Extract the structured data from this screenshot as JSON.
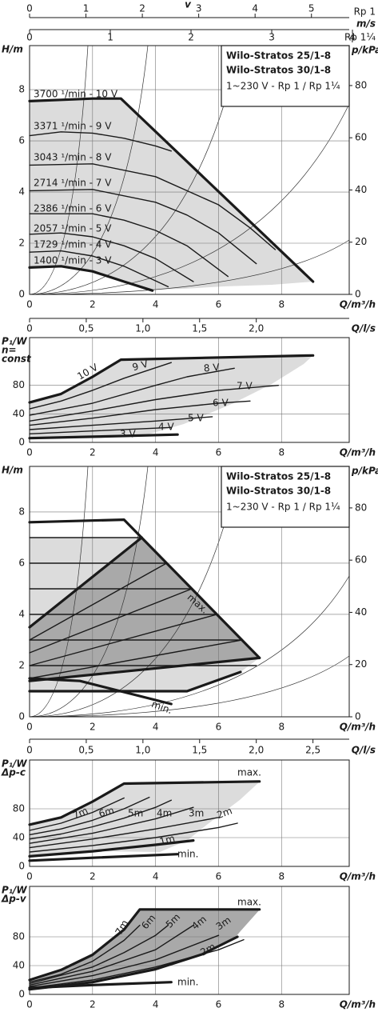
{
  "chart_data": [
    {
      "type": "axis",
      "title": "v",
      "unit": "m/s",
      "xlabel": "Rp 1",
      "xlim": [
        0,
        5.67
      ],
      "xticks": [
        0,
        1,
        2,
        3,
        4,
        5
      ]
    },
    {
      "type": "axis",
      "xlabel": "Rp 1¼",
      "xlim": [
        0,
        3.96
      ],
      "xticks": [
        0,
        1,
        2,
        3,
        4
      ]
    },
    {
      "type": "line",
      "ylabel_lines": [
        "H/m"
      ],
      "y2label": "p/kPa",
      "xlabel": "Q/m³/h",
      "annotations": [
        "Wilo-Stratos 25/1-8",
        "Wilo-Stratos 30/1-8",
        "1~230 V - Rp 1 / Rp 1¼"
      ],
      "xlim": [
        0,
        10.15
      ],
      "xticks": [
        0,
        2,
        4,
        6,
        8
      ],
      "ylim": [
        0,
        9.72
      ],
      "yticks": [
        0,
        2,
        4,
        6,
        8
      ],
      "y2lim": [
        0,
        95.3
      ],
      "y2ticks": [
        0,
        20,
        40,
        60,
        80
      ],
      "grid": true,
      "series": [
        {
          "name": "3700 ¹/min - 10 V",
          "color": "#1a1a1a",
          "weight": "bold",
          "x": [
            0,
            1,
            2,
            2.9,
            9
          ],
          "values": [
            7.55,
            7.6,
            7.65,
            7.65,
            0.5
          ]
        },
        {
          "name": "3371 ¹/min - 9 V",
          "color": "#1a1a1a",
          "weight": "normal",
          "x": [
            0,
            1,
            2,
            3,
            4,
            4.5
          ],
          "values": [
            6.2,
            6.35,
            6.3,
            6.1,
            5.8,
            5.6
          ]
        },
        {
          "name": "3043 ¹/min - 8 V",
          "color": "#1a1a1a",
          "weight": "normal",
          "x": [
            0,
            2,
            4,
            6,
            7,
            7.8
          ],
          "values": [
            5.05,
            5.1,
            4.6,
            3.5,
            2.6,
            1.75
          ]
        },
        {
          "name": "2714 ¹/min - 7 V",
          "color": "#1a1a1a",
          "weight": "normal",
          "x": [
            0,
            2,
            4,
            5,
            6,
            7.2
          ],
          "values": [
            4.05,
            4.1,
            3.6,
            3.1,
            2.4,
            1.2
          ]
        },
        {
          "name": "2386 ¹/min - 6 V",
          "color": "#1a1a1a",
          "weight": "normal",
          "x": [
            0,
            2,
            3,
            4,
            5,
            6.3
          ],
          "values": [
            3.15,
            3.15,
            2.9,
            2.5,
            1.9,
            0.7
          ]
        },
        {
          "name": "2057 ¹/min - 5 V",
          "color": "#1a1a1a",
          "weight": "normal",
          "x": [
            0,
            1,
            2,
            3,
            4,
            5.2
          ],
          "values": [
            2.35,
            2.4,
            2.25,
            1.9,
            1.4,
            0.5
          ]
        },
        {
          "name": "1729 ¹/min - 4 V",
          "color": "#1a1a1a",
          "weight": "normal",
          "x": [
            0,
            1,
            2,
            3,
            4.4
          ],
          "values": [
            1.65,
            1.7,
            1.5,
            1.1,
            0.3
          ]
        },
        {
          "name": "1400 ¹/min - 3 V",
          "color": "#1a1a1a",
          "weight": "bold",
          "x": [
            0,
            1,
            2,
            3,
            3.9
          ],
          "values": [
            1.05,
            1.1,
            0.9,
            0.5,
            0.15
          ]
        }
      ]
    },
    {
      "type": "axis",
      "xlabel": "Q/l/s",
      "xlim": [
        0,
        2.82
      ],
      "xticks": [
        0,
        {
          "value": 0.5,
          "label": "0,5"
        },
        {
          "value": 1,
          "label": "1,0"
        },
        {
          "value": 1.5,
          "label": "1,5"
        },
        {
          "value": 2,
          "label": "2,0"
        }
      ]
    },
    {
      "type": "line",
      "ylabel_lines": [
        "P₁/W",
        "n=",
        "const"
      ],
      "xlabel": "Q/m³/h",
      "xlim": [
        0,
        10.15
      ],
      "xticks": [
        0,
        2,
        4,
        6,
        8
      ],
      "ylim": [
        0,
        147
      ],
      "yticks": [
        0,
        40,
        80
      ],
      "grid": true,
      "series": [
        {
          "name": "10 V",
          "color": "#1a1a1a",
          "weight": "bold",
          "x": [
            0,
            1,
            2,
            2.9,
            9
          ],
          "values": [
            56,
            68,
            92,
            116,
            122
          ]
        },
        {
          "name": "9 V",
          "color": "#1a1a1a",
          "weight": "normal",
          "x": [
            0,
            1,
            2,
            3,
            4.5
          ],
          "values": [
            47,
            58,
            73,
            90,
            112
          ]
        },
        {
          "name": "8 V",
          "color": "#1a1a1a",
          "weight": "normal",
          "x": [
            0,
            2,
            4,
            5,
            6.5
          ],
          "values": [
            38,
            55,
            80,
            92,
            104
          ]
        },
        {
          "name": "7 V",
          "color": "#1a1a1a",
          "weight": "normal",
          "x": [
            0,
            2,
            4,
            6,
            7.9
          ],
          "values": [
            30,
            44,
            60,
            73,
            80
          ]
        },
        {
          "name": "6 V",
          "color": "#1a1a1a",
          "weight": "normal",
          "x": [
            0,
            2,
            4,
            6,
            7
          ],
          "values": [
            24,
            34,
            46,
            55,
            58
          ]
        },
        {
          "name": "5 V",
          "color": "#1a1a1a",
          "weight": "normal",
          "x": [
            0,
            2,
            4,
            5.8
          ],
          "values": [
            18,
            24,
            30,
            36
          ]
        },
        {
          "name": "4 V",
          "color": "#1a1a1a",
          "weight": "normal",
          "x": [
            0,
            2,
            4.5
          ],
          "values": [
            12,
            16,
            21
          ]
        },
        {
          "name": "3 V",
          "color": "#1a1a1a",
          "weight": "bold",
          "x": [
            0,
            2,
            4.7
          ],
          "values": [
            6,
            8,
            11
          ]
        }
      ]
    },
    {
      "type": "line",
      "ylabel_lines": [
        "H/m"
      ],
      "y2label": "p/kPa",
      "xlabel": "Q/m³/h",
      "annotations": [
        "Wilo-Stratos 25/1-8",
        "Wilo-Stratos 30/1-8",
        "1~230 V - Rp 1 / Rp 1¼"
      ],
      "xlim": [
        0,
        10.15
      ],
      "xticks": [
        0,
        2,
        4,
        6,
        8
      ],
      "ylim": [
        0,
        9.78
      ],
      "yticks": [
        0,
        2,
        4,
        6,
        8
      ],
      "y2lim": [
        0,
        95.9
      ],
      "y2ticks": [
        0,
        20,
        40,
        60,
        80
      ],
      "grid": true,
      "series": [
        {
          "name": "max.",
          "color": "#1a1a1a",
          "weight": "bold",
          "x": [
            0,
            3,
            7.3
          ],
          "values": [
            7.6,
            7.7,
            2.3
          ]
        },
        {
          "name": "min.",
          "color": "#1a1a1a",
          "weight": "bold",
          "x": [
            0,
            1.6,
            4.5
          ],
          "values": [
            1.5,
            1.4,
            0.5
          ]
        },
        {
          "color": "#1a1a1a",
          "weight": "bold",
          "x": [
            0,
            3.56
          ],
          "values": [
            3.5,
            7
          ]
        },
        {
          "color": "#1a1a1a",
          "weight": "bold",
          "x": [
            0,
            7.3
          ],
          "values": [
            1.4,
            2.3
          ]
        },
        {
          "color": "#1a1a1a",
          "weight": "bold",
          "x": [
            0,
            5,
            6.7
          ],
          "values": [
            1,
            1,
            1.75
          ]
        },
        {
          "color": "#1a1a1a",
          "weight": "normal",
          "x": [
            0,
            3.56
          ],
          "values": [
            7,
            7
          ]
        },
        {
          "color": "#1a1a1a",
          "weight": "normal",
          "x": [
            0,
            4.35
          ],
          "values": [
            6,
            6
          ]
        },
        {
          "color": "#1a1a1a",
          "weight": "normal",
          "x": [
            0,
            5.15
          ],
          "values": [
            5,
            5
          ]
        },
        {
          "color": "#1a1a1a",
          "weight": "normal",
          "x": [
            0,
            5.95
          ],
          "values": [
            4,
            4
          ]
        },
        {
          "color": "#1a1a1a",
          "weight": "normal",
          "x": [
            0,
            6.74
          ],
          "values": [
            3,
            3
          ]
        },
        {
          "color": "#1a1a1a",
          "weight": "normal",
          "x": [
            0,
            7.2
          ],
          "values": [
            2,
            2
          ]
        },
        {
          "color": "#1a1a1a",
          "weight": "normal",
          "x": [
            0,
            4.35
          ],
          "values": [
            3,
            6
          ]
        },
        {
          "color": "#1a1a1a",
          "weight": "normal",
          "x": [
            0,
            5.15
          ],
          "values": [
            2.5,
            5
          ]
        },
        {
          "color": "#1a1a1a",
          "weight": "normal",
          "x": [
            0,
            5.95
          ],
          "values": [
            2,
            4
          ]
        },
        {
          "color": "#1a1a1a",
          "weight": "normal",
          "x": [
            0,
            6.74
          ],
          "values": [
            1.5,
            3
          ]
        }
      ]
    },
    {
      "type": "axis",
      "xlabel": "Q/l/s",
      "xlim": [
        0,
        2.82
      ],
      "xticks": [
        0,
        {
          "value": 0.5,
          "label": "0,5"
        },
        {
          "value": 1,
          "label": "1,0"
        },
        {
          "value": 1.5,
          "label": "1,5"
        },
        {
          "value": 2,
          "label": "2,0"
        },
        {
          "value": 2.5,
          "label": "2,5"
        }
      ]
    },
    {
      "type": "line",
      "ylabel_lines": [
        "P₁/W",
        "Δp-c"
      ],
      "xlabel": "Q/m³/h",
      "xlim": [
        0,
        10.15
      ],
      "xticks": [
        0,
        2,
        4,
        6,
        8
      ],
      "ylim": [
        0,
        147.8
      ],
      "yticks": [
        0,
        40,
        80
      ],
      "grid": true,
      "series": [
        {
          "name": "max.",
          "color": "#1a1a1a",
          "weight": "bold",
          "x": [
            0,
            1,
            2,
            3,
            7.3
          ],
          "values": [
            58,
            68,
            90,
            115,
            118
          ]
        },
        {
          "name": "7m",
          "color": "#1a1a1a",
          "weight": "normal",
          "x": [
            0,
            1,
            2,
            3
          ],
          "values": [
            50,
            60,
            75,
            95
          ]
        },
        {
          "name": "6m",
          "color": "#1a1a1a",
          "weight": "normal",
          "x": [
            0,
            1,
            2,
            3,
            3.8
          ],
          "values": [
            44,
            52,
            64,
            80,
            96
          ]
        },
        {
          "name": "5m",
          "color": "#1a1a1a",
          "weight": "normal",
          "x": [
            0,
            1,
            2,
            3,
            4,
            4.5
          ],
          "values": [
            38,
            45,
            55,
            67,
            82,
            92
          ]
        },
        {
          "name": "4m",
          "color": "#1a1a1a",
          "weight": "normal",
          "x": [
            0,
            2,
            4,
            5.2
          ],
          "values": [
            32,
            46,
            66,
            82
          ]
        },
        {
          "name": "3m",
          "color": "#1a1a1a",
          "weight": "normal",
          "x": [
            0,
            2,
            4,
            6
          ],
          "values": [
            26,
            38,
            52,
            68
          ]
        },
        {
          "name": "2m",
          "color": "#1a1a1a",
          "weight": "normal",
          "x": [
            0,
            2,
            4,
            6,
            6.6
          ],
          "values": [
            20,
            29,
            40,
            54,
            60
          ]
        },
        {
          "name": "1m",
          "color": "#1a1a1a",
          "weight": "bold",
          "x": [
            0,
            2,
            4,
            5.2
          ],
          "values": [
            14,
            21,
            30,
            36
          ]
        },
        {
          "name": "min.",
          "color": "#1a1a1a",
          "weight": "bold",
          "x": [
            0,
            2,
            4.7
          ],
          "values": [
            8,
            12,
            17
          ]
        }
      ]
    },
    {
      "type": "line",
      "ylabel_lines": [
        "P₁/W",
        "Δp-v"
      ],
      "xlabel": "Q/m³/h",
      "xlim": [
        0,
        10.15
      ],
      "xticks": [
        0,
        2,
        4,
        6,
        8
      ],
      "ylim": [
        0,
        150
      ],
      "yticks": [
        0,
        40,
        80
      ],
      "grid": true,
      "series": [
        {
          "name": "max.",
          "color": "#1a1a1a",
          "weight": "bold",
          "x": [
            0,
            1,
            2,
            3,
            3.5,
            7.3
          ],
          "values": [
            20,
            34,
            55,
            90,
            118,
            118
          ]
        },
        {
          "name": "7m",
          "color": "#1a1a1a",
          "weight": "normal",
          "x": [
            0,
            1,
            2,
            3,
            3.5
          ],
          "values": [
            17,
            28,
            46,
            75,
            96
          ]
        },
        {
          "name": "6m",
          "color": "#1a1a1a",
          "weight": "normal",
          "x": [
            0,
            2,
            3,
            4,
            4.4
          ],
          "values": [
            15,
            38,
            58,
            82,
            96
          ]
        },
        {
          "name": "5m",
          "color": "#1a1a1a",
          "weight": "normal",
          "x": [
            0,
            2,
            4,
            5.2
          ],
          "values": [
            13,
            32,
            62,
            96
          ]
        },
        {
          "name": "4m",
          "color": "#1a1a1a",
          "weight": "normal",
          "x": [
            0,
            2,
            4,
            6
          ],
          "values": [
            11,
            26,
            48,
            82
          ]
        },
        {
          "name": "3m",
          "color": "#1a1a1a",
          "weight": "normal",
          "x": [
            0,
            2,
            4,
            6,
            6.8
          ],
          "values": [
            9,
            20,
            38,
            62,
            76
          ]
        },
        {
          "name": "2m",
          "color": "#1a1a1a",
          "weight": "bold",
          "x": [
            0,
            2,
            4,
            5.5,
            6.6
          ],
          "values": [
            7,
            17,
            35,
            56,
            80
          ]
        },
        {
          "name": "min.",
          "color": "#1a1a1a",
          "weight": "bold",
          "x": [
            0,
            2,
            4.5
          ],
          "values": [
            9,
            13,
            17
          ]
        }
      ]
    }
  ]
}
